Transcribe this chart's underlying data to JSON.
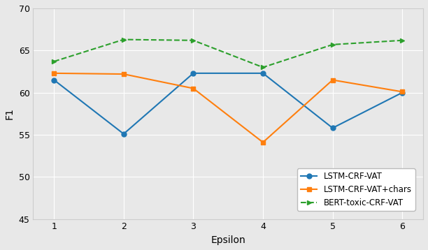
{
  "epsilon": [
    1,
    2,
    3,
    4,
    5,
    6
  ],
  "lstm_crf_vat": [
    61.5,
    55.1,
    62.3,
    62.3,
    55.8,
    60.0
  ],
  "lstm_crf_vat_chars": [
    62.3,
    62.2,
    60.5,
    54.1,
    61.5,
    60.1
  ],
  "bert_toxic_crf_vat": [
    63.7,
    66.3,
    66.2,
    63.0,
    65.7,
    66.2
  ],
  "lstm_color": "#1f77b4",
  "lstm_chars_color": "#ff7f0e",
  "bert_color": "#2ca02c",
  "ylim": [
    45,
    70
  ],
  "xlim_min": 0.7,
  "xlim_max": 6.3,
  "xlabel": "Epsilon",
  "ylabel": "F1",
  "legend_labels": [
    "LSTM-CRF-VAT",
    "LSTM-CRF-VAT+chars",
    "BERT-toxic-CRF-VAT"
  ],
  "bg_color": "#e8e8e8",
  "grid_color": "#ffffff",
  "yticks": [
    45,
    50,
    55,
    60,
    65,
    70
  ]
}
